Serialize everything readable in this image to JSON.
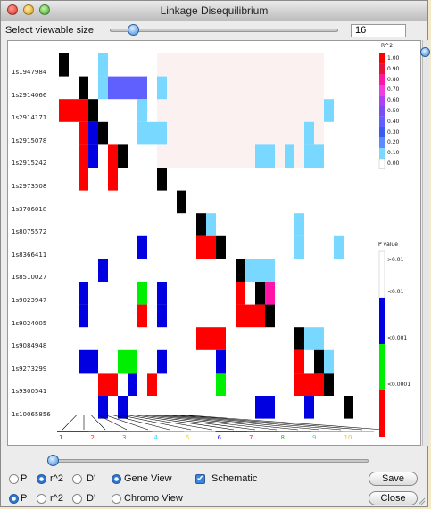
{
  "window": {
    "title": "Linkage Disequilibrium"
  },
  "toolbar": {
    "viewable_label": "Select viewable size",
    "viewable_value": "16",
    "viewable_fraction": 0.1
  },
  "snps": [
    "1s1947984",
    "1s2914066",
    "1s2914171",
    "1s2915078",
    "1s2915242",
    "1s2973508",
    "1s3706018",
    "1s8075572",
    "1s8366411",
    "1s8510027",
    "1s9023947",
    "1s9024005",
    "1s9084948",
    "1s9273299",
    "1s9300541",
    "1s10065856"
  ],
  "legend": {
    "r2_title": "R^2",
    "r2_labels": [
      "1.00",
      "0.90",
      "0.80",
      "0.70",
      "0.60",
      "0.50",
      "0.40",
      "0.30",
      "0.20",
      "0.10",
      "0.00"
    ],
    "r2_colors": [
      "#ff0000",
      "#e8103c",
      "#ff14a8",
      "#f03ce0",
      "#b040f0",
      "#7a4ef0",
      "#6060ff",
      "#3c5cf0",
      "#5a8cff",
      "#78d8ff",
      "#ffffff"
    ],
    "p_title": "P value",
    "p_labels": [
      ">0.01",
      "<0.01",
      "<0.001",
      "<0.0001"
    ],
    "p_colors": [
      "#ffffff",
      "#0000e0",
      "#00ee00",
      "#ff0000"
    ]
  },
  "chromosomes": {
    "labels": [
      "1",
      "2",
      "3",
      "4",
      "5",
      "6",
      "7",
      "8",
      "9",
      "10"
    ],
    "colors": [
      "#3030ff",
      "#ff2020",
      "#20c020",
      "#30d8ff",
      "#f0d020",
      "#3030ff",
      "#ff2020",
      "#20c020",
      "#30d8ff",
      "#f0c020"
    ]
  },
  "matrix_colors": {
    "lc": "#78d8ff",
    "bl": "#0000e0",
    "rd": "#ff0000",
    "gr": "#00ee00",
    "pp": "#6060ff",
    "mg": "#ff14a8",
    "pk": "#fbf1f1",
    "dg": "#000000"
  },
  "zoom_fraction": 0.0,
  "options": {
    "row1": [
      "P",
      "r^2",
      "D'",
      "Gene View",
      "Schematic"
    ],
    "row2": [
      "P",
      "r^2",
      "D'",
      "Chromo View"
    ],
    "row1_checked": [
      false,
      true,
      false,
      true,
      true
    ],
    "row2_checked": [
      true,
      false,
      false,
      false
    ]
  },
  "buttons": {
    "save": "Save",
    "close": "Close"
  }
}
